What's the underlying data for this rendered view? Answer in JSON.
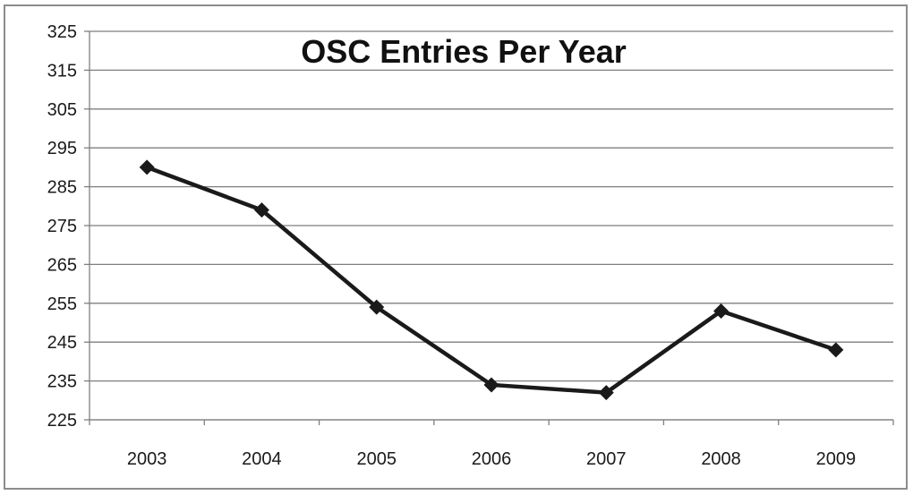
{
  "chart_data": {
    "type": "line",
    "title": "OSC Entries Per Year",
    "xlabel": "",
    "ylabel": "",
    "categories": [
      "2003",
      "2004",
      "2005",
      "2006",
      "2007",
      "2008",
      "2009"
    ],
    "values": [
      290,
      279,
      254,
      234,
      232,
      253,
      243
    ],
    "ylim": [
      225,
      325
    ],
    "yticks": [
      225,
      235,
      245,
      255,
      265,
      275,
      285,
      295,
      305,
      315,
      325
    ],
    "grid": true,
    "legend": "none",
    "marker": "diamond",
    "line_color": "#1a1a1a",
    "grid_color": "#7f7f7f"
  }
}
